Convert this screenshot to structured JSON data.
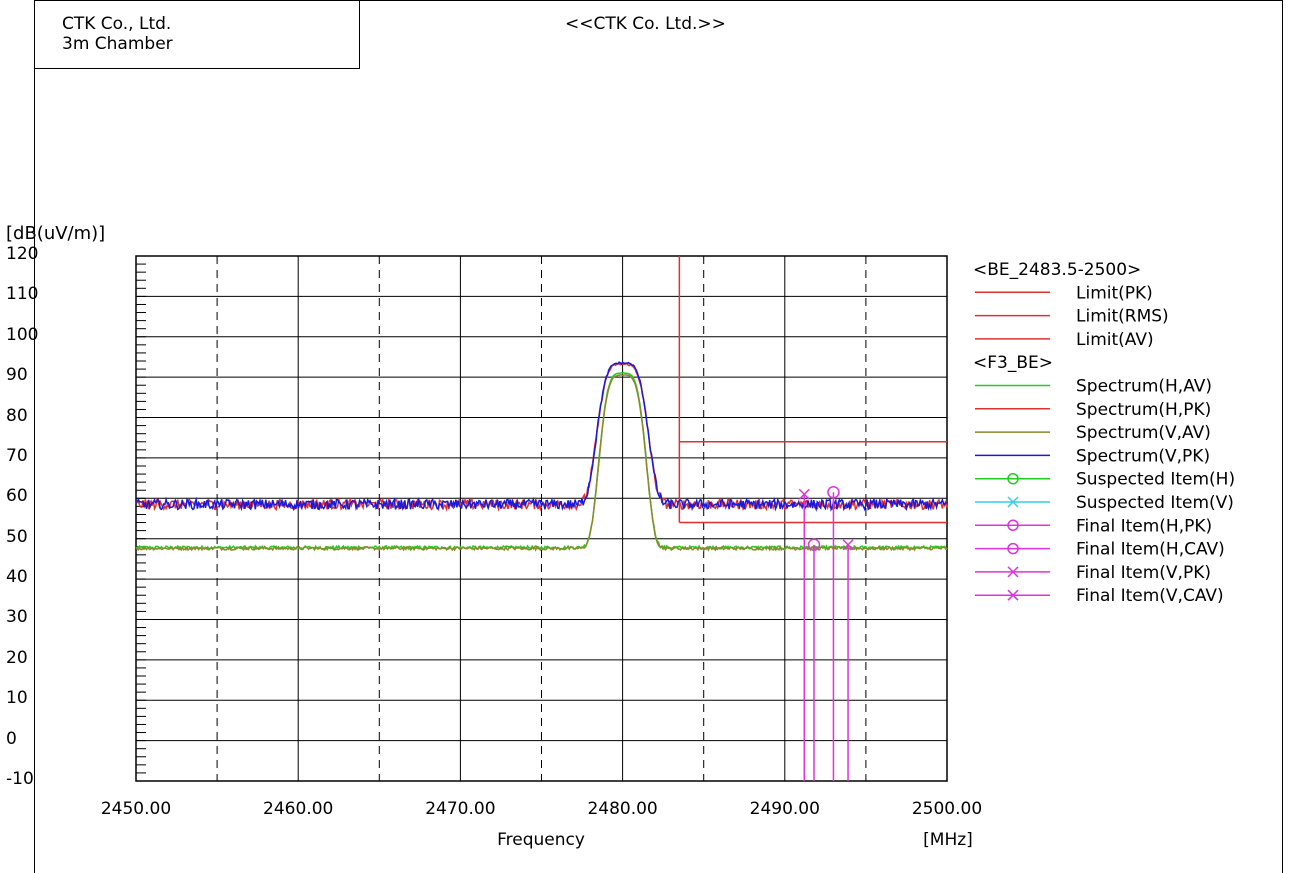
{
  "header": {
    "company": "CTK Co., Ltd.",
    "site": "3m Chamber",
    "title": "<<CTK Co. Ltd.>>"
  },
  "chart_data": {
    "type": "line",
    "ylabel": "[dB(uV/m)]",
    "xlabel": "Frequency",
    "xunit": "[MHz]",
    "xlim": [
      2450,
      2500
    ],
    "ylim": [
      -10,
      120
    ],
    "grid": true,
    "x_ticks": [
      "2450.00",
      "2460.00",
      "2470.00",
      "2480.00",
      "2490.00",
      "2500.00"
    ],
    "y_ticks": [
      "120",
      "110",
      "100",
      "90",
      "80",
      "70",
      "60",
      "50",
      "40",
      "30",
      "20",
      "10",
      "0",
      "-10"
    ],
    "legend_position": "right",
    "legend_groups": [
      {
        "title": "<BE_2483.5-2500>",
        "items": [
          {
            "name": "Limit(PK)",
            "color": "#e03030",
            "marker": "none"
          },
          {
            "name": "Limit(RMS)",
            "color": "#e03030",
            "marker": "none"
          },
          {
            "name": "Limit(AV)",
            "color": "#e03030",
            "marker": "none"
          }
        ]
      },
      {
        "title": "<F3_BE>",
        "items": [
          {
            "name": "Spectrum(H,AV)",
            "color": "#22cc22",
            "marker": "none"
          },
          {
            "name": "Spectrum(H,PK)",
            "color": "#e03030",
            "marker": "none"
          },
          {
            "name": "Spectrum(V,AV)",
            "color": "#8a8a2a",
            "marker": "none"
          },
          {
            "name": "Spectrum(V,PK)",
            "color": "#1a1adc",
            "marker": "none"
          },
          {
            "name": "Suspected Item(H)",
            "color": "#22cc22",
            "marker": "circle"
          },
          {
            "name": "Suspected Item(V)",
            "color": "#33ccee",
            "marker": "x"
          },
          {
            "name": "Final Item(H,PK)",
            "color": "#dd33dd",
            "marker": "circle"
          },
          {
            "name": "Final Item(H,CAV)",
            "color": "#dd33dd",
            "marker": "circle"
          },
          {
            "name": "Final Item(V,PK)",
            "color": "#dd33dd",
            "marker": "x"
          },
          {
            "name": "Final Item(V,CAV)",
            "color": "#dd33dd",
            "marker": "x"
          }
        ]
      }
    ],
    "limits": {
      "x_start": 2483.5,
      "x_end": 2500,
      "pk": 74,
      "av": 54
    },
    "spectrum": {
      "noise_floor_pk": 58.5,
      "noise_floor_av": 47.8,
      "peak_center": 2480,
      "peak_pk": 93.5,
      "peak_av": 91
    },
    "final_items": [
      {
        "label": "Final Item(V,PK)",
        "x": 2491.2,
        "y": 61,
        "marker": "x"
      },
      {
        "label": "Final Item(H,CAV)",
        "x": 2491.8,
        "y": 48.5,
        "marker": "circle"
      },
      {
        "label": "Final Item(H,PK)",
        "x": 2493.0,
        "y": 61.5,
        "marker": "circle"
      },
      {
        "label": "Final Item(V,CAV)",
        "x": 2493.9,
        "y": 48.5,
        "marker": "x"
      }
    ],
    "colors": {
      "limit": "#e03030",
      "h_av": "#22cc22",
      "h_pk": "#e03030",
      "v_av": "#8a8a2a",
      "v_pk": "#1a1adc",
      "final": "#dd33dd"
    }
  }
}
